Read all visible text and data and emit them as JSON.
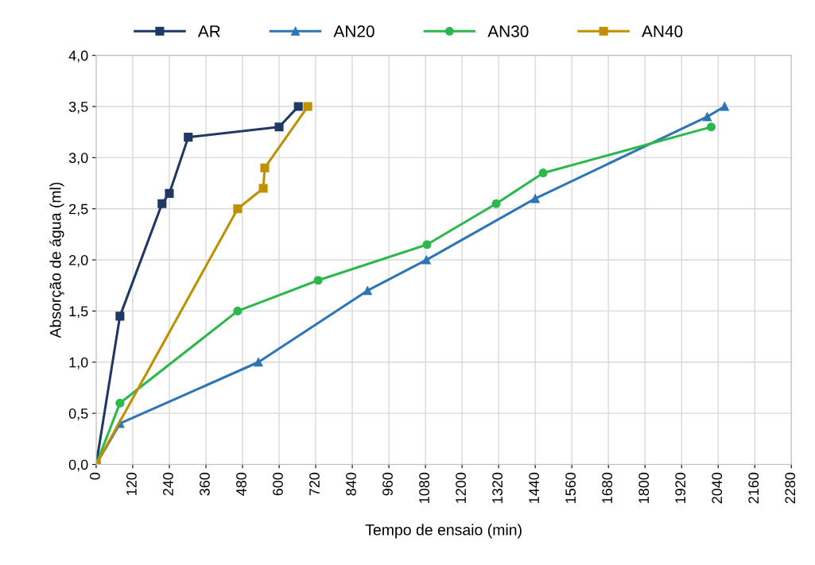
{
  "chart_data": {
    "type": "line",
    "xlabel": "Tempo de ensaio (min)",
    "ylabel": "Absorção de água (ml)",
    "xlim": [
      0,
      2280
    ],
    "xticks": [
      0,
      120,
      240,
      360,
      480,
      600,
      720,
      840,
      960,
      1080,
      1200,
      1320,
      1440,
      1560,
      1680,
      1800,
      1920,
      2040,
      2160,
      2280
    ],
    "ylim": [
      0,
      4
    ],
    "yticks": [
      {
        "value": 0,
        "label": "0,0"
      },
      {
        "value": 0.5,
        "label": "0,5"
      },
      {
        "value": 1,
        "label": "1,0"
      },
      {
        "value": 1.5,
        "label": "1,5"
      },
      {
        "value": 2,
        "label": "2,0"
      },
      {
        "value": 2.5,
        "label": "2,5"
      },
      {
        "value": 3,
        "label": "3,0"
      },
      {
        "value": 3.5,
        "label": "3,5"
      },
      {
        "value": 4,
        "label": "4,0"
      }
    ],
    "grid": true,
    "legend": "top",
    "series": [
      {
        "name": "AR",
        "color": "#1f3864",
        "marker": "square",
        "x": [
          0,
          78,
          216,
          240,
          302,
          600,
          663
        ],
        "values": [
          0,
          1.45,
          2.55,
          2.65,
          3.2,
          3.3,
          3.5
        ]
      },
      {
        "name": "AN20",
        "color": "#2e75b6",
        "marker": "triangle",
        "x": [
          0,
          78,
          532,
          890,
          1083,
          1440,
          2004,
          2061
        ],
        "values": [
          0,
          0.4,
          1.0,
          1.7,
          2.0,
          2.6,
          3.4,
          3.5
        ]
      },
      {
        "name": "AN30",
        "color": "#2db84d",
        "marker": "circle",
        "x": [
          0,
          78,
          464,
          728,
          1085,
          1312,
          1466,
          2017
        ],
        "values": [
          0,
          0.6,
          1.5,
          1.8,
          2.15,
          2.55,
          2.85,
          3.3
        ]
      },
      {
        "name": "AN40",
        "color": "#bf9000",
        "marker": "square",
        "x": [
          0,
          464,
          548,
          553,
          694
        ],
        "values": [
          0,
          2.5,
          2.7,
          2.9,
          3.5
        ]
      }
    ]
  }
}
